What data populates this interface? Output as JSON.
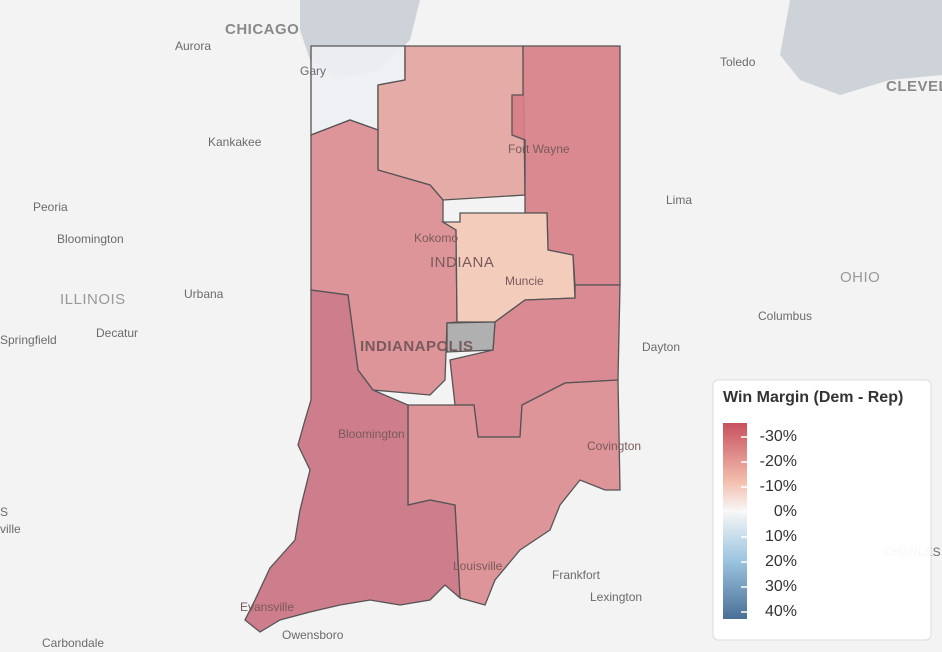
{
  "places": [
    "CHICAGO",
    "Aurora",
    "Gary",
    "Toledo",
    "CLEVELA",
    "Kankakee",
    "Fort Wayne",
    "Peoria",
    "Lima",
    "Bloomington",
    "Kokomo",
    "INDIANA",
    "Muncie",
    "OHIO",
    "ILLINOIS",
    "Urbana",
    "Columbus",
    "Decatur",
    "Springfield",
    "INDIANAPOLIS",
    "Dayton",
    "Bloomington",
    "Covington",
    "Louisville",
    "Frankfort",
    "Lexington",
    "Evansville",
    "Owensboro",
    "Carbondale",
    "CHARLES",
    "ville",
    "S"
  ],
  "legend": {
    "title": "Win Margin (Dem - Rep)",
    "ticks": [
      {
        "value": -30,
        "label": "-30%"
      },
      {
        "value": -20,
        "label": "-20%"
      },
      {
        "value": -10,
        "label": "-10%"
      },
      {
        "value": 0,
        "label": "0%"
      },
      {
        "value": 10,
        "label": "10%"
      },
      {
        "value": 20,
        "label": "20%"
      },
      {
        "value": 30,
        "label": "30%"
      },
      {
        "value": 40,
        "label": "40%"
      }
    ]
  }
}
